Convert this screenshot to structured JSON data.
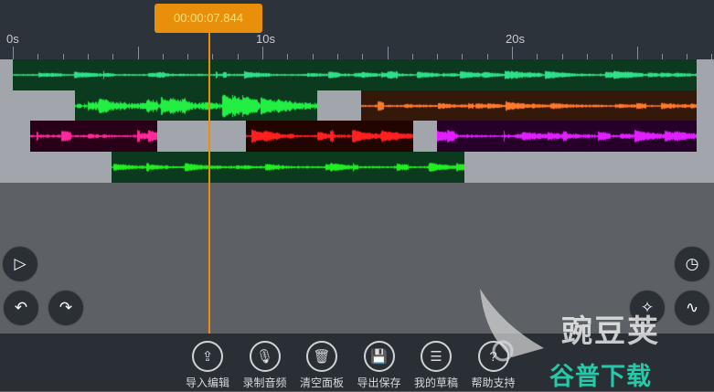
{
  "ruler": {
    "labels": [
      {
        "text": "0s",
        "sec": 0
      },
      {
        "text": "10s",
        "sec": 10
      },
      {
        "text": "20s",
        "sec": 20
      }
    ]
  },
  "playhead": {
    "time": "00:00:07.844",
    "sec": 7.844
  },
  "tracks": [
    [
      {
        "start": 0,
        "end": 27.4,
        "bg": "#0c3a1e",
        "wave": "#2fe08a",
        "amp": 0.35
      }
    ],
    [
      {
        "start": 2.5,
        "end": 12.2,
        "bg": "#0c3a1e",
        "wave": "#22ee44",
        "amp": 0.9
      },
      {
        "start": 13.95,
        "end": 27.4,
        "bg": "#34180a",
        "wave": "#ff7a2a",
        "amp": 0.4
      }
    ],
    [
      {
        "start": 0.7,
        "end": 5.8,
        "bg": "#2a0018",
        "wave": "#ff2a9a",
        "amp": 0.55
      },
      {
        "start": 9.35,
        "end": 16.05,
        "bg": "#220400",
        "wave": "#ff2020",
        "amp": 0.55
      },
      {
        "start": 17,
        "end": 27.4,
        "bg": "#260028",
        "wave": "#e020ff",
        "amp": 0.5
      }
    ],
    [
      {
        "start": 3.95,
        "end": 18.1,
        "bg": "#0c3a1e",
        "wave": "#22ee22",
        "amp": 0.4
      }
    ]
  ],
  "controls": {
    "left": [
      "play-icon",
      "undo-icon",
      "redo-icon"
    ],
    "right": [
      "timer-icon",
      "sparkle-icon",
      "waveform-icon"
    ]
  },
  "toolbar": [
    {
      "icon": "import-icon",
      "glyph": "⇪",
      "label": "导入编辑"
    },
    {
      "icon": "microphone-icon",
      "glyph": "🎙",
      "label": "录制音频"
    },
    {
      "icon": "trash-icon",
      "glyph": "🗑",
      "label": "清空面板"
    },
    {
      "icon": "save-icon",
      "glyph": "💾",
      "label": "导出保存"
    },
    {
      "icon": "list-icon",
      "glyph": "☰",
      "label": "我的草稿"
    },
    {
      "icon": "help-icon",
      "glyph": "?",
      "label": "帮助支持"
    }
  ],
  "watermark": {
    "line1": "豌豆荚",
    "line2": "谷普下载"
  }
}
